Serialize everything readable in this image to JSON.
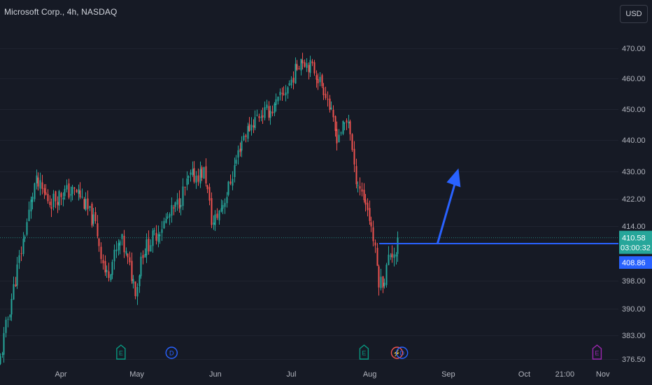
{
  "header": {
    "title": "Microsoft Corp., 4h, NASDAQ",
    "currency_button": "USD"
  },
  "colors": {
    "background": "#161a25",
    "up": "#26a69a",
    "down": "#ef5350",
    "drawing": "#2962ff",
    "earnings": "#089981",
    "dividend": "#2962ff",
    "future_earnings": "#9c27b0",
    "grid": "#1f2330"
  },
  "chart_data": {
    "type": "candlestick",
    "symbol": "Microsoft Corp.",
    "interval": "4h",
    "exchange": "NASDAQ",
    "currency": "USD",
    "grid": false,
    "y_ticks": [
      470.0,
      460.0,
      450.0,
      440.0,
      430.0,
      422.0,
      414.0,
      398.0,
      390.0,
      383.0,
      376.5
    ],
    "y_tick_labels": [
      "470.00",
      "460.00",
      "450.00",
      "440.00",
      "430.00",
      "422.00",
      "414.00",
      "398.00",
      "390.00",
      "383.00",
      "376.50"
    ],
    "x_labels": [
      "Apr",
      "May",
      "Jun",
      "Jul",
      "Aug",
      "Sep",
      "Oct",
      "21:00",
      "Nov"
    ],
    "series": [
      {
        "name": "close (approx.)",
        "values": [
          {
            "date": "2024-03-19",
            "close": 416.0
          },
          {
            "date": "2024-03-22",
            "close": 427.0
          },
          {
            "date": "2024-03-28",
            "close": 421.0
          },
          {
            "date": "2024-04-02",
            "close": 424.0
          },
          {
            "date": "2024-04-08",
            "close": 424.0
          },
          {
            "date": "2024-04-15",
            "close": 414.0
          },
          {
            "date": "2024-04-19",
            "close": 399.0
          },
          {
            "date": "2024-04-25",
            "close": 410.0
          },
          {
            "date": "2024-05-01",
            "close": 395.0
          },
          {
            "date": "2024-05-03",
            "close": 406.0
          },
          {
            "date": "2024-05-10",
            "close": 413.0
          },
          {
            "date": "2024-05-17",
            "close": 420.0
          },
          {
            "date": "2024-05-22",
            "close": 428.0
          },
          {
            "date": "2024-05-28",
            "close": 430.0
          },
          {
            "date": "2024-05-31",
            "close": 414.0
          },
          {
            "date": "2024-06-06",
            "close": 424.0
          },
          {
            "date": "2024-06-12",
            "close": 441.0
          },
          {
            "date": "2024-06-18",
            "close": 448.0
          },
          {
            "date": "2024-06-24",
            "close": 450.0
          },
          {
            "date": "2024-07-01",
            "close": 459.0
          },
          {
            "date": "2024-07-05",
            "close": 467.0
          },
          {
            "date": "2024-07-10",
            "close": 463.0
          },
          {
            "date": "2024-07-15",
            "close": 455.0
          },
          {
            "date": "2024-07-19",
            "close": 441.0
          },
          {
            "date": "2024-07-24",
            "close": 447.0
          },
          {
            "date": "2024-07-26",
            "close": 430.0
          },
          {
            "date": "2024-07-31",
            "close": 420.0
          },
          {
            "date": "2024-08-02",
            "close": 413.0
          },
          {
            "date": "2024-08-05",
            "close": 397.0
          },
          {
            "date": "2024-08-07",
            "close": 399.0
          },
          {
            "date": "2024-08-09",
            "close": 406.0
          },
          {
            "date": "2024-08-12",
            "close": 407.0
          },
          {
            "date": "2024-08-13",
            "close": 410.6
          }
        ]
      }
    ],
    "last_price": {
      "value": 410.58,
      "label": "410.58",
      "countdown": "03:00:32"
    },
    "level_line": {
      "value": 408.86,
      "label": "408.86"
    },
    "events": [
      {
        "type": "earnings",
        "label": "E",
        "date": "2024-04-25"
      },
      {
        "type": "dividend",
        "label": "D",
        "date": "2024-05-15"
      },
      {
        "type": "earnings",
        "label": "E",
        "date": "2024-07-30"
      },
      {
        "type": "split",
        "label": "⚡",
        "date": "2024-08-12"
      },
      {
        "type": "dividend",
        "label": "D",
        "date": "2024-08-14"
      },
      {
        "type": "future_earnings",
        "label": "E",
        "date": "2024-10-30"
      }
    ]
  }
}
